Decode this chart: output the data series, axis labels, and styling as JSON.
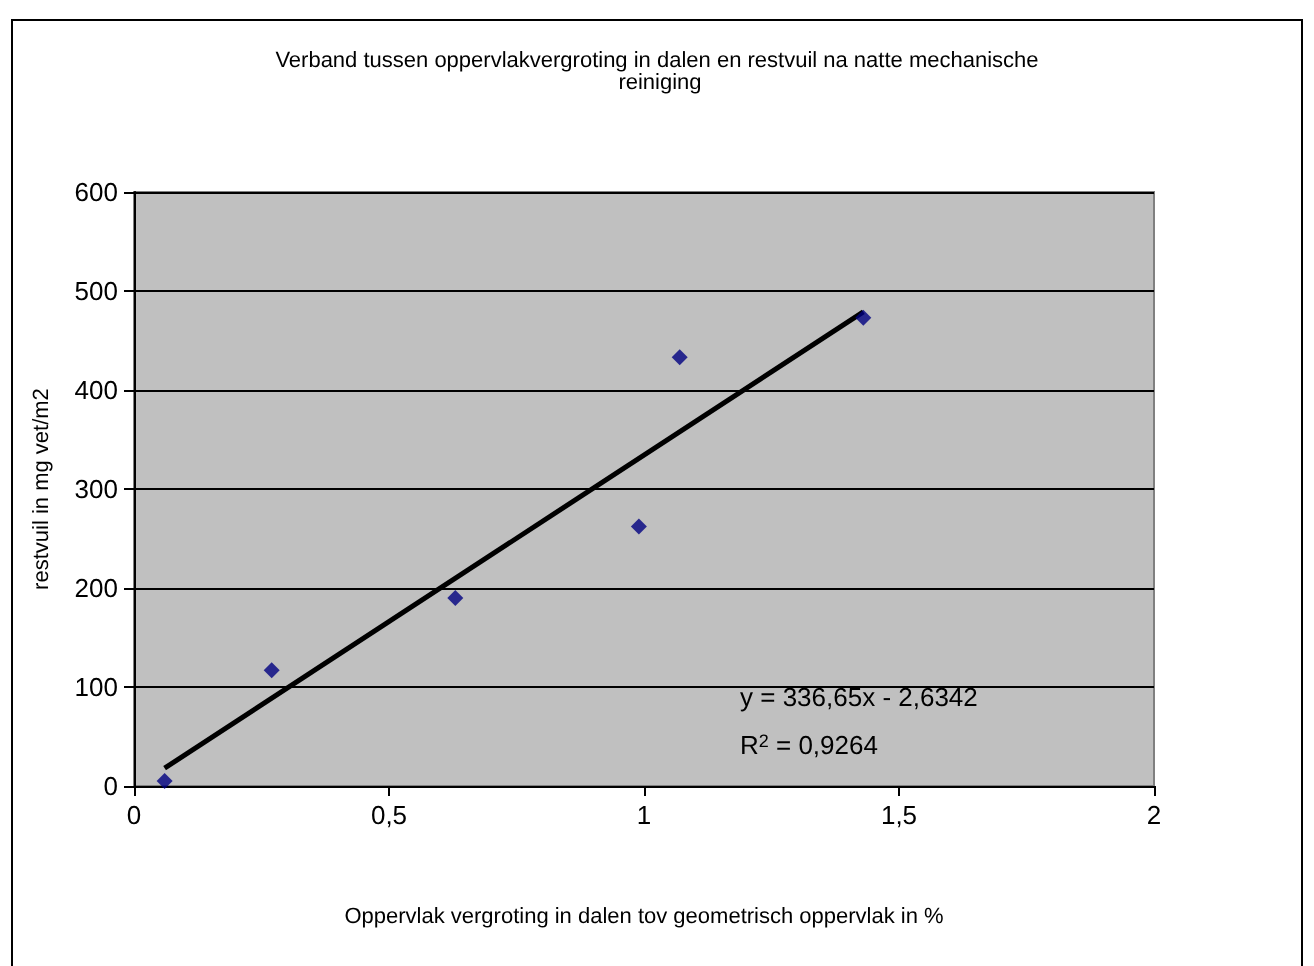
{
  "chart_data": {
    "type": "scatter",
    "title": "Verband tussen oppervlakvergroting in dalen en restvuil na natte mechanische reiniging",
    "xlabel": "Oppervlak vergroting in dalen tov geometrisch oppervlak in %",
    "ylabel": "restvuil in mg vet/m2",
    "annotations": [
      "y = 336,65x - 2,6342",
      "R$^{2}$ = 0,9264"
    ],
    "series": [
      {
        "color": "#000080",
        "marker": "diamond",
        "x": [
          0.06,
          0.27,
          0.63,
          0.99,
          1.07,
          1.43
        ],
        "values": [
          5,
          117,
          190,
          262,
          433,
          473
        ]
      },
      {
        "type": "line",
        "color": "#000000",
        "marker": "none",
        "line_style": "solid",
        "x": [
          0.06,
          1.43
        ],
        "values": [
          18,
          479
        ]
      }
    ],
    "xlim": [
      0,
      2
    ],
    "xticks": [
      0,
      {
        "value": 0.5,
        "label": "0,5"
      },
      1,
      {
        "value": 1.5,
        "label": "1,5"
      },
      2
    ],
    "ylim": [
      0,
      600
    ],
    "yticks": [
      0,
      100,
      200,
      300,
      400,
      500,
      600
    ],
    "grid": "y"
  }
}
